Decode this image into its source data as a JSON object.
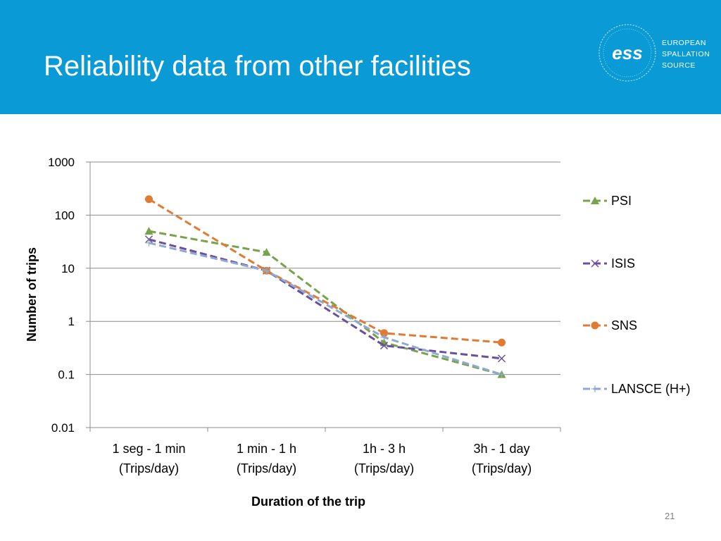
{
  "slide": {
    "title": "Reliability data from other facilities",
    "page_number": "21",
    "logo": {
      "mark": "ess",
      "lines": [
        "EUROPEAN",
        "SPALLATION",
        "SOURCE"
      ]
    }
  },
  "colors": {
    "header_bg": "#0a9bd6",
    "PSI": "#77a34a",
    "ISIS": "#6b4f9e",
    "SNS": "#e07b34",
    "LANSCE": "#8ea9d3"
  },
  "chart_data": {
    "type": "line",
    "title": "",
    "xlabel": "Duration of the trip",
    "ylabel": "Number of trips",
    "yscale": "log",
    "ylim": [
      0.01,
      1000
    ],
    "yticks": [
      "1000",
      "100",
      "10",
      "1",
      "0.1",
      "0.01"
    ],
    "ytick_values": [
      1000,
      100,
      10,
      1,
      0.1,
      0.01
    ],
    "grid": true,
    "legend_position": "right",
    "categories": [
      [
        "1 seg - 1 min",
        "(Trips/day)"
      ],
      [
        "1 min - 1 h",
        "(Trips/day)"
      ],
      [
        "1h - 3 h",
        "(Trips/day)"
      ],
      [
        "3h - 1 day",
        "(Trips/day)"
      ]
    ],
    "series": [
      {
        "name": "PSI",
        "marker": "triangle",
        "values": [
          50,
          20,
          0.4,
          0.1
        ]
      },
      {
        "name": "ISIS",
        "marker": "x",
        "values": [
          35,
          9,
          0.35,
          0.2
        ]
      },
      {
        "name": "SNS",
        "marker": "circle",
        "values": [
          200,
          9,
          0.6,
          0.4
        ]
      },
      {
        "name": "LANSCE (H+)",
        "marker": "plus",
        "values": [
          30,
          9,
          0.5,
          0.1
        ]
      }
    ]
  }
}
